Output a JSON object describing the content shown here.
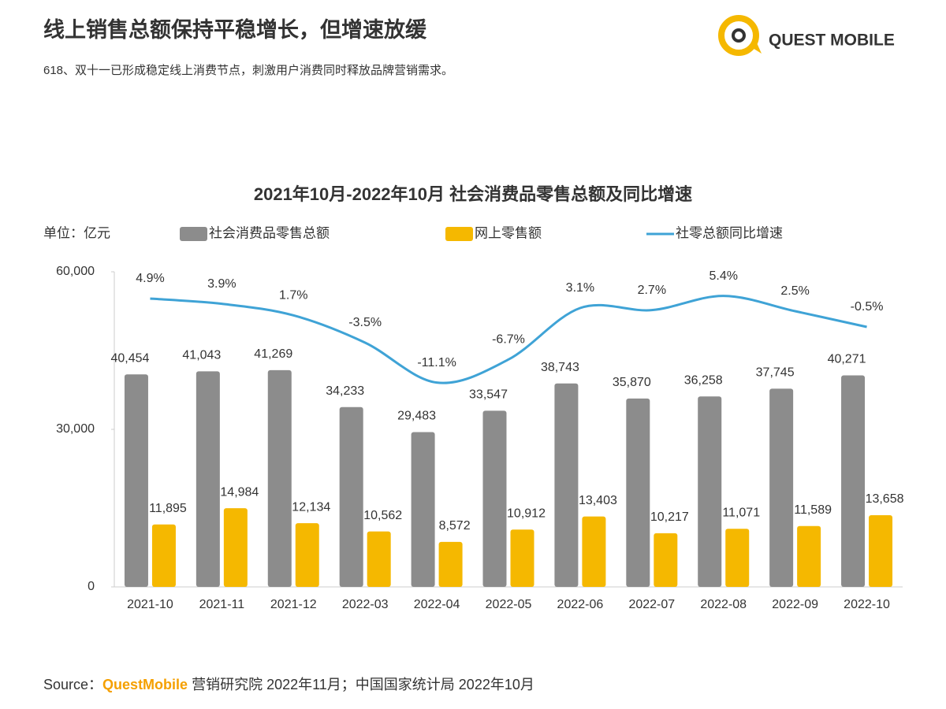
{
  "header": {
    "title": "线上销售总额保持平稳增长，但增速放缓",
    "subtitle": "618、双十一已形成稳定线上消费节点，刺激用户消费同时释放品牌营销需求。",
    "logo": "QUEST MOBILE"
  },
  "chart_data": {
    "type": "bar",
    "title": "2021年10月-2022年10月 社会消费品零售总额及同比增速",
    "unit_label": "单位：亿元",
    "categories": [
      "2021-10",
      "2021-11",
      "2021-12",
      "2022-03",
      "2022-04",
      "2022-05",
      "2022-06",
      "2022-07",
      "2022-08",
      "2022-09",
      "2022-10"
    ],
    "series": [
      {
        "name": "社会消费品零售总额",
        "color": "#8c8c8c",
        "values": [
          40454,
          41043,
          41269,
          34233,
          29483,
          33547,
          38743,
          35870,
          36258,
          37745,
          40271
        ],
        "value_labels": [
          "40,454",
          "41,043",
          "41,269",
          "34,233",
          "29,483",
          "33,547",
          "38,743",
          "35,870",
          "36,258",
          "37,745",
          "40,271"
        ]
      },
      {
        "name": "网上零售额",
        "color": "#f5b800",
        "values": [
          11895,
          14984,
          12134,
          10562,
          8572,
          10912,
          13403,
          10217,
          11071,
          11589,
          13658
        ],
        "value_labels": [
          "11,895",
          "14,984",
          "12,134",
          "10,562",
          "8,572",
          "10,912",
          "13,403",
          "10,217",
          "11,071",
          "11,589",
          "13,658"
        ]
      },
      {
        "name": "社零总额同比增速",
        "type": "line",
        "axis": "y2",
        "color": "#3fa3d6",
        "values": [
          4.9,
          3.9,
          1.7,
          -3.5,
          -11.1,
          -6.7,
          3.1,
          2.7,
          5.4,
          2.5,
          -0.5
        ],
        "value_labels": [
          "4.9%",
          "3.9%",
          "1.7%",
          "-3.5%",
          "-11.1%",
          "-6.7%",
          "3.1%",
          "2.7%",
          "5.4%",
          "2.5%",
          "-0.5%"
        ]
      }
    ],
    "ylim": [
      0,
      60000
    ],
    "yticks": [
      0,
      {
        "value": 30000,
        "label": "30,000"
      },
      {
        "value": 60000,
        "label": "60,000"
      }
    ],
    "y2lim": [
      -50,
      10
    ],
    "grid": false
  },
  "source": [
    "Source：",
    "QuestMobile",
    " 营销研究院 2022年11月；中国国家统计局  2022年10月"
  ]
}
